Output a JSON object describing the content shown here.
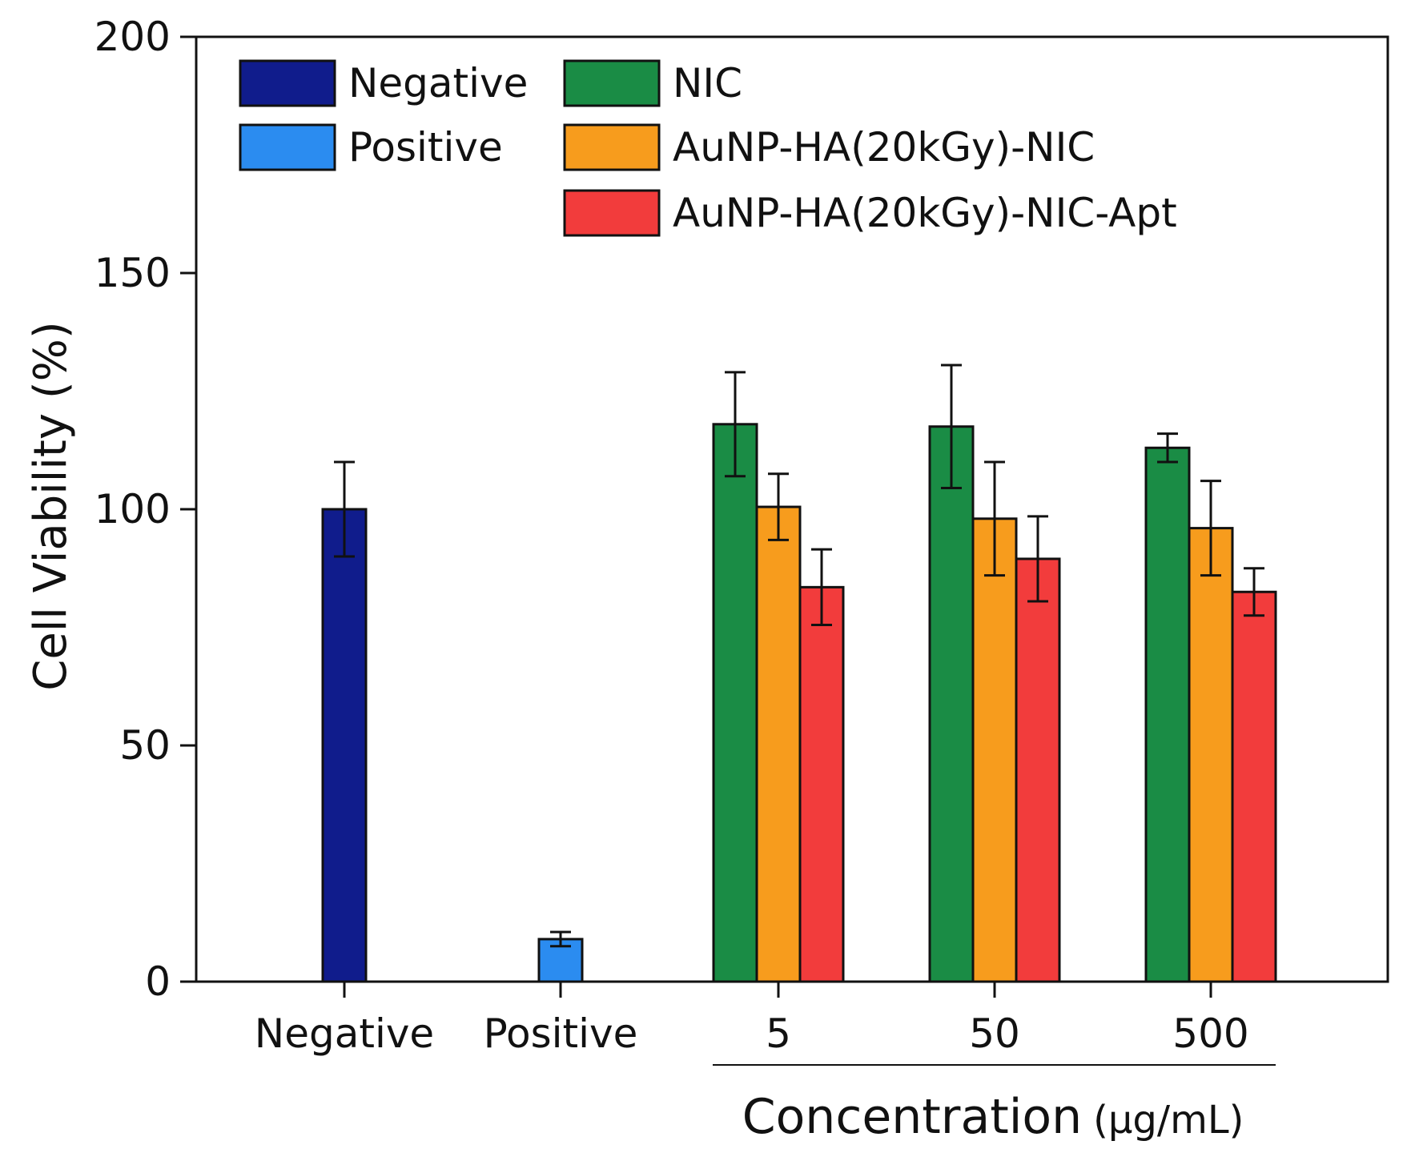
{
  "chart_data": {
    "type": "bar",
    "title": "",
    "ylabel": "Cell Viability (%)",
    "xlabel": "Concentration",
    "xlabel_unit": "(μg/mL)",
    "ylim": [
      0,
      200
    ],
    "yticks": [
      0,
      50,
      100,
      150,
      200
    ],
    "grid": false,
    "legend_position": "top-left",
    "controls": [
      {
        "label": "Negative",
        "series": "Negative",
        "value": 100,
        "error": 10,
        "color": "#101c8c"
      },
      {
        "label": "Positive",
        "series": "Positive",
        "value": 9,
        "error": 1.5,
        "color": "#2b8cf0"
      }
    ],
    "categories": [
      "5",
      "50",
      "500"
    ],
    "series": [
      {
        "name": "NIC",
        "color": "#1a8c45",
        "values": [
          118,
          117.5,
          113
        ],
        "errors": [
          11,
          13,
          3
        ]
      },
      {
        "name": "AuNP-HA(20kGy)-NIC",
        "color": "#f79c1d",
        "values": [
          100.5,
          98,
          96
        ],
        "errors": [
          7,
          12,
          10
        ]
      },
      {
        "name": "AuNP-HA(20kGy)-NIC-Apt",
        "color": "#f23c3c",
        "values": [
          83.5,
          89.5,
          82.5
        ],
        "errors": [
          8,
          9,
          5
        ]
      }
    ],
    "legend": [
      {
        "name": "Negative",
        "color": "#101c8c"
      },
      {
        "name": "Positive",
        "color": "#2b8cf0"
      },
      {
        "name": "NIC",
        "color": "#1a8c45"
      },
      {
        "name": "AuNP-HA(20kGy)-NIC",
        "color": "#f79c1d"
      },
      {
        "name": "AuNP-HA(20kGy)-NIC-Apt",
        "color": "#f23c3c"
      }
    ]
  }
}
